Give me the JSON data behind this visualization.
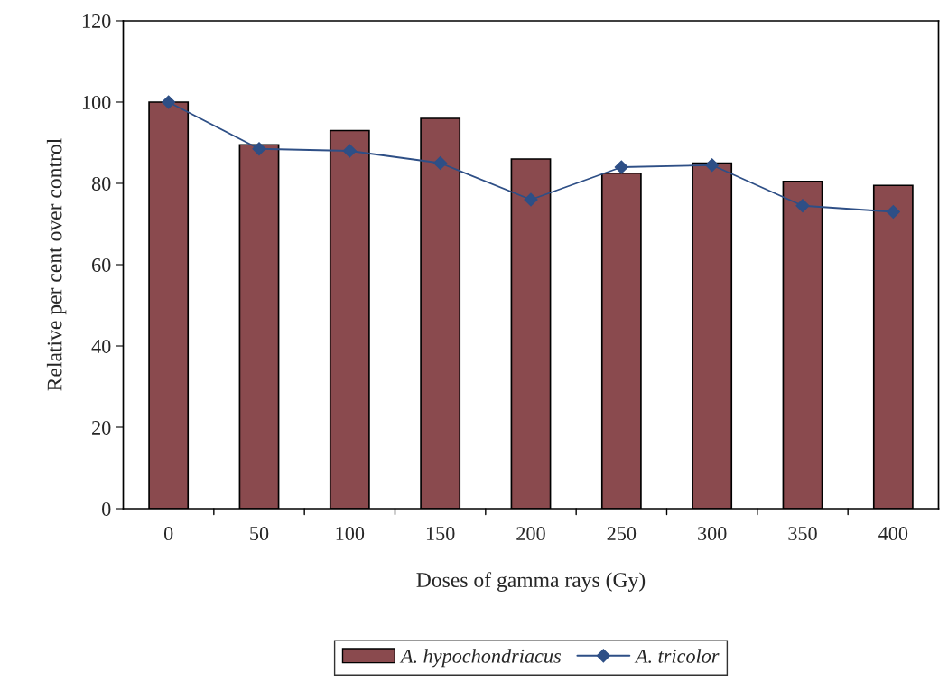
{
  "chart_data": {
    "type": "bar",
    "xlabel": "Doses of gamma rays (Gy)",
    "ylabel": "Relative per cent over control",
    "categories": [
      "0",
      "50",
      "100",
      "150",
      "200",
      "250",
      "300",
      "350",
      "400"
    ],
    "series": [
      {
        "name": "A. hypochondriacus",
        "color": "#8a4a4e",
        "values": [
          100,
          89.5,
          93,
          96,
          86,
          82.5,
          85,
          80.5,
          79.5
        ]
      },
      {
        "name": "A. tricolor",
        "type": "line",
        "color": "#2e4f86",
        "marker": "diamond",
        "values": [
          100,
          88.5,
          88,
          85,
          76,
          84,
          84.5,
          74.5,
          73
        ]
      }
    ],
    "ylim": [
      0,
      120
    ],
    "yticks": [
      0,
      20,
      40,
      60,
      80,
      100,
      120
    ],
    "grid": false,
    "legend": "bottom"
  }
}
